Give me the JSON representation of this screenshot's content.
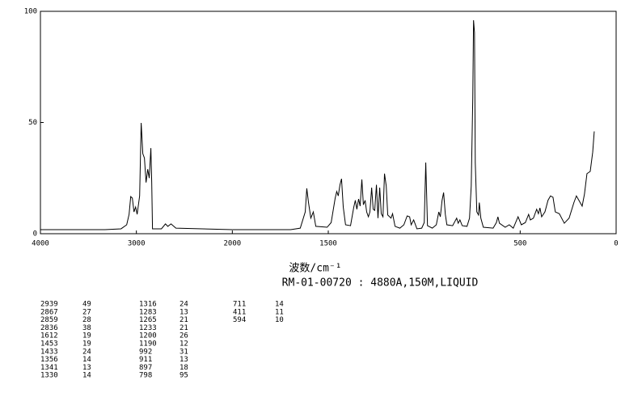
{
  "chart_data": {
    "type": "line",
    "x_label": "波数/cm⁻¹",
    "subtitle": "RM-01-00720 : 4880A,150M,LIQUID",
    "xlim": [
      4000,
      0
    ],
    "xticks": [
      4000,
      3000,
      2000,
      1500,
      500,
      0
    ],
    "x_compress": {
      "above": 2000,
      "factor": 0.5
    },
    "ylim": [
      0,
      100
    ],
    "yticks": [
      0,
      50,
      100
    ],
    "color": "#000000",
    "x": [
      4000,
      3328,
      3160,
      3101,
      3076,
      3059,
      3042,
      3025,
      3008,
      2992,
      2966,
      2950,
      2933,
      2916,
      2899,
      2882,
      2866,
      2849,
      2840,
      2832,
      2739,
      2697,
      2672,
      2639,
      2588,
      2000,
      1696,
      1646,
      1620,
      1612,
      1603,
      1591,
      1578,
      1565,
      1506,
      1485,
      1464,
      1456,
      1448,
      1439,
      1431,
      1422,
      1410,
      1384,
      1367,
      1359,
      1351,
      1342,
      1334,
      1325,
      1317,
      1308,
      1300,
      1291,
      1283,
      1274,
      1266,
      1258,
      1249,
      1241,
      1232,
      1224,
      1215,
      1207,
      1198,
      1190,
      1173,
      1165,
      1152,
      1127,
      1106,
      1089,
      1076,
      1068,
      1055,
      1038,
      1013,
      1000,
      992,
      983,
      958,
      937,
      924,
      916,
      907,
      899,
      890,
      882,
      852,
      831,
      823,
      814,
      802,
      777,
      764,
      755,
      747,
      743,
      738,
      734,
      726,
      717,
      713,
      705,
      692,
      641,
      624,
      616,
      608,
      578,
      557,
      536,
      511,
      494,
      473,
      456,
      447,
      431,
      414,
      405,
      397,
      388,
      371,
      355,
      342,
      329,
      317,
      296,
      270,
      245,
      220,
      207,
      194,
      177,
      165,
      152,
      135,
      122,
      114
    ],
    "values": [
      1.8,
      1.8,
      2.2,
      4,
      8.7,
      16.7,
      16,
      9.8,
      12,
      8.7,
      17,
      49.8,
      36,
      34,
      23,
      29,
      25,
      38.5,
      23,
      2.2,
      2.2,
      4.4,
      3.3,
      4.4,
      2.5,
      1.8,
      1.8,
      2.5,
      9.8,
      20.4,
      14,
      7,
      9.8,
      3.3,
      2.9,
      5,
      16,
      19,
      17,
      22,
      24.7,
      12,
      4,
      3.6,
      12,
      15,
      11,
      15.6,
      12.4,
      24.4,
      13,
      15,
      9.8,
      7.6,
      9.8,
      20.7,
      11,
      10.5,
      22,
      7,
      20.7,
      9,
      7.6,
      27,
      21.5,
      8.4,
      7,
      9,
      3.3,
      2.5,
      4,
      8,
      7.6,
      4,
      6.2,
      2.2,
      2.5,
      5,
      32,
      3.6,
      2.5,
      4,
      9.8,
      7.6,
      15,
      18.5,
      8.7,
      4,
      3.6,
      7,
      4.7,
      6.2,
      3.6,
      3.3,
      7,
      21.5,
      61,
      96,
      90.5,
      32,
      9.8,
      8.4,
      14,
      7,
      2.9,
      2.5,
      5,
      7.6,
      4.7,
      2.9,
      4,
      2.5,
      7.6,
      4,
      5,
      8.7,
      6.2,
      7,
      11,
      9,
      11.6,
      7.6,
      9.8,
      15,
      17,
      16.4,
      9.8,
      9,
      4.7,
      7,
      14,
      17,
      15,
      12.4,
      17.8,
      27,
      28,
      36.7,
      46
    ],
    "peak_table": [
      [
        2939,
        49
      ],
      [
        2867,
        27
      ],
      [
        2859,
        28
      ],
      [
        2836,
        38
      ],
      [
        1612,
        19
      ],
      [
        1453,
        19
      ],
      [
        1433,
        24
      ],
      [
        1356,
        14
      ],
      [
        1341,
        13
      ],
      [
        1330,
        14
      ],
      [
        1316,
        24
      ],
      [
        1283,
        13
      ],
      [
        1265,
        21
      ],
      [
        1233,
        21
      ],
      [
        1200,
        26
      ],
      [
        1190,
        12
      ],
      [
        992,
        31
      ],
      [
        911,
        13
      ],
      [
        897,
        18
      ],
      [
        798,
        95
      ],
      [
        711,
        14
      ],
      [
        411,
        11
      ],
      [
        594,
        10
      ]
    ]
  }
}
